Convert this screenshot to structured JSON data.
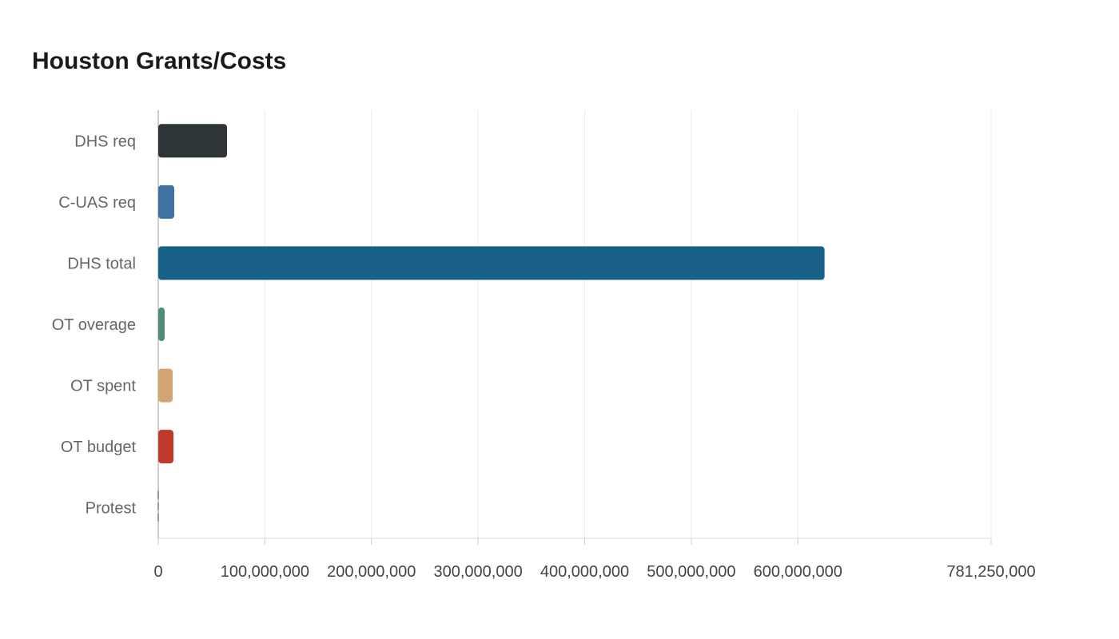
{
  "chart_data": {
    "type": "bar",
    "orientation": "horizontal",
    "title": "Houston Grants/Costs",
    "categories": [
      "DHS req",
      "C-UAS req",
      "DHS total",
      "OT overage",
      "OT spent",
      "OT budget",
      "Protest"
    ],
    "values": [
      64500000,
      15000000,
      625000000,
      6000000,
      13500000,
      14250000,
      0
    ],
    "colors": [
      "#2d3538",
      "#3f72a0",
      "#186088",
      "#4e8c78",
      "#d2a474",
      "#c0392b",
      "#999999"
    ],
    "xlim": [
      0,
      781250000
    ],
    "xticks": [
      0,
      100000000,
      200000000,
      300000000,
      400000000,
      500000000,
      600000000,
      781250000
    ],
    "xtick_labels": [
      "0",
      "100,000,000",
      "200,000,000",
      "300,000,000",
      "400,000,000",
      "500,000,000",
      "600,000,000",
      "781,250,000"
    ],
    "grid": true,
    "xlabel": "",
    "ylabel": ""
  }
}
